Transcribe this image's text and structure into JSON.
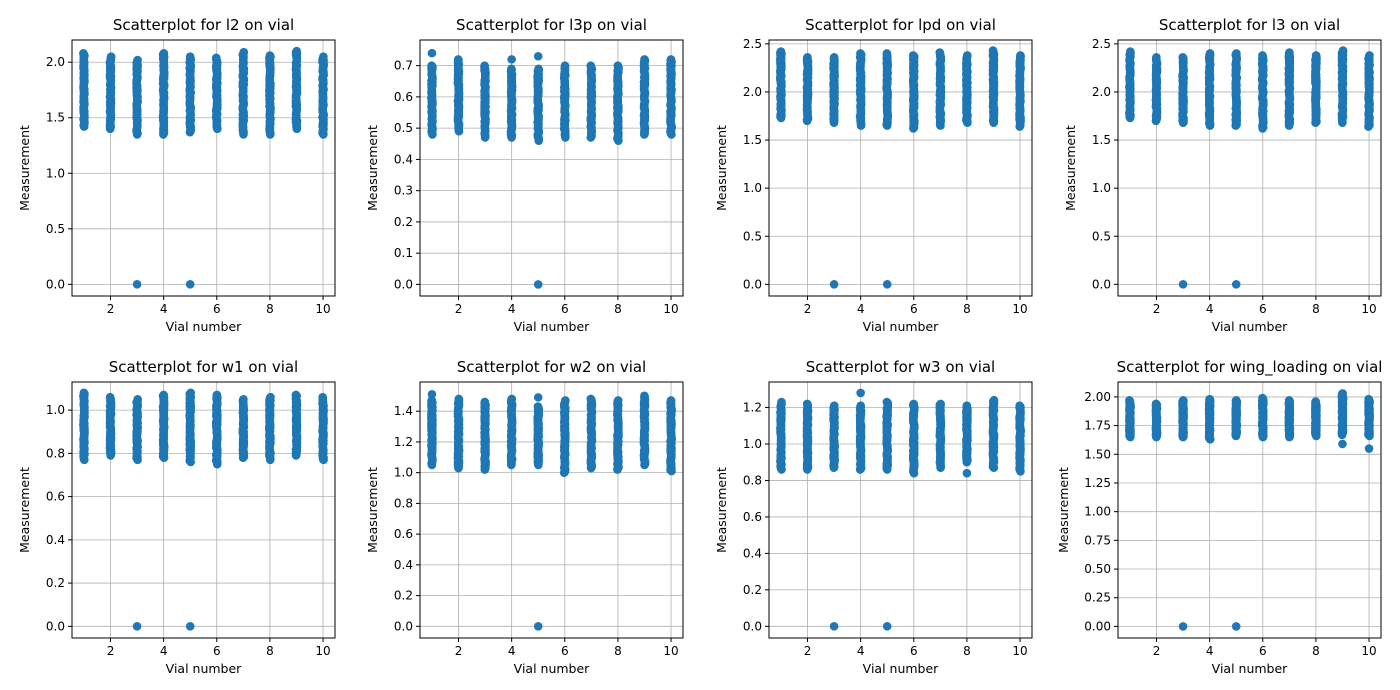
{
  "chart_data": [
    {
      "type": "scatter",
      "title": "Scatterplot for l2 on vial",
      "xlabel": "Vial number",
      "ylabel": "Measurement",
      "xticks": [
        "2",
        "4",
        "6",
        "8",
        "10"
      ],
      "yticks": [
        "0.0",
        "0.5",
        "1.0",
        "1.5",
        "2.0"
      ],
      "ytick_values": [
        0,
        0.5,
        1.0,
        1.5,
        2.0
      ],
      "xlim": [
        0.55,
        10.45
      ],
      "ylim": [
        -0.105,
        2.2
      ],
      "grid": true,
      "color": "#1f77b4",
      "clusters": [
        {
          "x": 1,
          "min": 1.42,
          "max": 2.08
        },
        {
          "x": 2,
          "min": 1.4,
          "max": 2.05
        },
        {
          "x": 3,
          "min": 1.35,
          "max": 2.02
        },
        {
          "x": 4,
          "min": 1.35,
          "max": 2.08
        },
        {
          "x": 5,
          "min": 1.37,
          "max": 2.05
        },
        {
          "x": 6,
          "min": 1.4,
          "max": 2.04
        },
        {
          "x": 7,
          "min": 1.35,
          "max": 2.09
        },
        {
          "x": 8,
          "min": 1.35,
          "max": 2.06
        },
        {
          "x": 9,
          "min": 1.4,
          "max": 2.1
        },
        {
          "x": 10,
          "min": 1.35,
          "max": 2.05
        }
      ],
      "outliers": [
        {
          "x": 3,
          "y": 0
        },
        {
          "x": 5,
          "y": 0
        }
      ]
    },
    {
      "type": "scatter",
      "title": "Scatterplot for l3p on vial",
      "xlabel": "Vial number",
      "ylabel": "Measurement",
      "xticks": [
        "2",
        "4",
        "6",
        "8",
        "10"
      ],
      "yticks": [
        "0.0",
        "0.1",
        "0.2",
        "0.3",
        "0.4",
        "0.5",
        "0.6",
        "0.7"
      ],
      "ytick_values": [
        0,
        0.1,
        0.2,
        0.3,
        0.4,
        0.5,
        0.6,
        0.7
      ],
      "xlim": [
        0.55,
        10.45
      ],
      "ylim": [
        -0.037,
        0.782
      ],
      "grid": true,
      "color": "#1f77b4",
      "clusters": [
        {
          "x": 1,
          "min": 0.48,
          "max": 0.7
        },
        {
          "x": 2,
          "min": 0.49,
          "max": 0.72
        },
        {
          "x": 3,
          "min": 0.47,
          "max": 0.7
        },
        {
          "x": 4,
          "min": 0.47,
          "max": 0.69
        },
        {
          "x": 5,
          "min": 0.46,
          "max": 0.69
        },
        {
          "x": 6,
          "min": 0.47,
          "max": 0.7
        },
        {
          "x": 7,
          "min": 0.47,
          "max": 0.7
        },
        {
          "x": 8,
          "min": 0.46,
          "max": 0.7
        },
        {
          "x": 9,
          "min": 0.48,
          "max": 0.72
        },
        {
          "x": 10,
          "min": 0.48,
          "max": 0.72
        }
      ],
      "outliers": [
        {
          "x": 1,
          "y": 0.74
        },
        {
          "x": 4,
          "y": 0.72
        },
        {
          "x": 5,
          "y": 0.73
        },
        {
          "x": 5,
          "y": 0
        }
      ]
    },
    {
      "type": "scatter",
      "title": "Scatterplot for lpd on vial",
      "xlabel": "Vial number",
      "ylabel": "Measurement",
      "xticks": [
        "2",
        "4",
        "6",
        "8",
        "10"
      ],
      "yticks": [
        "0.0",
        "0.5",
        "1.0",
        "1.5",
        "2.0",
        "2.5"
      ],
      "ytick_values": [
        0,
        0.5,
        1.0,
        1.5,
        2.0,
        2.5
      ],
      "xlim": [
        0.55,
        10.45
      ],
      "ylim": [
        -0.121,
        2.54
      ],
      "grid": true,
      "color": "#1f77b4",
      "clusters": [
        {
          "x": 1,
          "min": 1.73,
          "max": 2.42
        },
        {
          "x": 2,
          "min": 1.7,
          "max": 2.36
        },
        {
          "x": 3,
          "min": 1.68,
          "max": 2.36
        },
        {
          "x": 4,
          "min": 1.65,
          "max": 2.4
        },
        {
          "x": 5,
          "min": 1.65,
          "max": 2.4
        },
        {
          "x": 6,
          "min": 1.62,
          "max": 2.38
        },
        {
          "x": 7,
          "min": 1.65,
          "max": 2.41
        },
        {
          "x": 8,
          "min": 1.68,
          "max": 2.38
        },
        {
          "x": 9,
          "min": 1.68,
          "max": 2.43
        },
        {
          "x": 10,
          "min": 1.64,
          "max": 2.38
        }
      ],
      "outliers": [
        {
          "x": 3,
          "y": 0
        },
        {
          "x": 5,
          "y": 0
        }
      ]
    },
    {
      "type": "scatter",
      "title": "Scatterplot for l3 on vial",
      "xlabel": "Vial number",
      "ylabel": "Measurement",
      "xticks": [
        "2",
        "4",
        "6",
        "8",
        "10"
      ],
      "yticks": [
        "0.0",
        "0.5",
        "1.0",
        "1.5",
        "2.0",
        "2.5"
      ],
      "ytick_values": [
        0,
        0.5,
        1.0,
        1.5,
        2.0,
        2.5
      ],
      "xlim": [
        0.55,
        10.45
      ],
      "ylim": [
        -0.121,
        2.54
      ],
      "grid": true,
      "color": "#1f77b4",
      "clusters": [
        {
          "x": 1,
          "min": 1.73,
          "max": 2.42
        },
        {
          "x": 2,
          "min": 1.7,
          "max": 2.36
        },
        {
          "x": 3,
          "min": 1.68,
          "max": 2.36
        },
        {
          "x": 4,
          "min": 1.65,
          "max": 2.4
        },
        {
          "x": 5,
          "min": 1.65,
          "max": 2.4
        },
        {
          "x": 6,
          "min": 1.62,
          "max": 2.38
        },
        {
          "x": 7,
          "min": 1.65,
          "max": 2.41
        },
        {
          "x": 8,
          "min": 1.68,
          "max": 2.38
        },
        {
          "x": 9,
          "min": 1.68,
          "max": 2.43
        },
        {
          "x": 10,
          "min": 1.64,
          "max": 2.38
        }
      ],
      "outliers": [
        {
          "x": 3,
          "y": 0
        },
        {
          "x": 5,
          "y": 0
        }
      ]
    },
    {
      "type": "scatter",
      "title": "Scatterplot for w1 on vial",
      "xlabel": "Vial number",
      "ylabel": "Measurement",
      "xticks": [
        "2",
        "4",
        "6",
        "8",
        "10"
      ],
      "yticks": [
        "0.0",
        "0.2",
        "0.4",
        "0.6",
        "0.8",
        "1.0"
      ],
      "ytick_values": [
        0,
        0.2,
        0.4,
        0.6,
        0.8,
        1.0
      ],
      "xlim": [
        0.55,
        10.45
      ],
      "ylim": [
        -0.054,
        1.13
      ],
      "grid": true,
      "color": "#1f77b4",
      "clusters": [
        {
          "x": 1,
          "min": 0.77,
          "max": 1.08
        },
        {
          "x": 2,
          "min": 0.79,
          "max": 1.06
        },
        {
          "x": 3,
          "min": 0.77,
          "max": 1.05
        },
        {
          "x": 4,
          "min": 0.78,
          "max": 1.07
        },
        {
          "x": 5,
          "min": 0.76,
          "max": 1.08
        },
        {
          "x": 6,
          "min": 0.75,
          "max": 1.07
        },
        {
          "x": 7,
          "min": 0.78,
          "max": 1.05
        },
        {
          "x": 8,
          "min": 0.77,
          "max": 1.06
        },
        {
          "x": 9,
          "min": 0.79,
          "max": 1.07
        },
        {
          "x": 10,
          "min": 0.77,
          "max": 1.06
        }
      ],
      "outliers": [
        {
          "x": 3,
          "y": 0
        },
        {
          "x": 5,
          "y": 0
        }
      ]
    },
    {
      "type": "scatter",
      "title": "Scatterplot for w2 on vial",
      "xlabel": "Vial number",
      "ylabel": "Measurement",
      "xticks": [
        "2",
        "4",
        "6",
        "8",
        "10"
      ],
      "yticks": [
        "0.0",
        "0.2",
        "0.4",
        "0.6",
        "0.8",
        "1.0",
        "1.2",
        "1.4"
      ],
      "ytick_values": [
        0,
        0.2,
        0.4,
        0.6,
        0.8,
        1.0,
        1.2,
        1.4
      ],
      "xlim": [
        0.55,
        10.45
      ],
      "ylim": [
        -0.076,
        1.59
      ],
      "grid": true,
      "color": "#1f77b4",
      "clusters": [
        {
          "x": 1,
          "min": 1.05,
          "max": 1.47
        },
        {
          "x": 2,
          "min": 1.03,
          "max": 1.48
        },
        {
          "x": 3,
          "min": 1.02,
          "max": 1.46
        },
        {
          "x": 4,
          "min": 1.05,
          "max": 1.48
        },
        {
          "x": 5,
          "min": 1.05,
          "max": 1.43
        },
        {
          "x": 6,
          "min": 1.0,
          "max": 1.47
        },
        {
          "x": 7,
          "min": 1.03,
          "max": 1.48
        },
        {
          "x": 8,
          "min": 1.02,
          "max": 1.47
        },
        {
          "x": 9,
          "min": 1.05,
          "max": 1.5
        },
        {
          "x": 10,
          "min": 1.01,
          "max": 1.47
        }
      ],
      "outliers": [
        {
          "x": 1,
          "y": 1.51
        },
        {
          "x": 5,
          "y": 1.49
        },
        {
          "x": 5,
          "y": 0
        }
      ]
    },
    {
      "type": "scatter",
      "title": "Scatterplot for w3 on vial",
      "xlabel": "Vial number",
      "ylabel": "Measurement",
      "xticks": [
        "2",
        "4",
        "6",
        "8",
        "10"
      ],
      "yticks": [
        "0.0",
        "0.2",
        "0.4",
        "0.6",
        "0.8",
        "1.0",
        "1.2"
      ],
      "ytick_values": [
        0,
        0.2,
        0.4,
        0.6,
        0.8,
        1.0,
        1.2
      ],
      "xlim": [
        0.55,
        10.45
      ],
      "ylim": [
        -0.064,
        1.34
      ],
      "grid": true,
      "color": "#1f77b4",
      "clusters": [
        {
          "x": 1,
          "min": 0.86,
          "max": 1.23
        },
        {
          "x": 2,
          "min": 0.86,
          "max": 1.22
        },
        {
          "x": 3,
          "min": 0.87,
          "max": 1.21
        },
        {
          "x": 4,
          "min": 0.86,
          "max": 1.21
        },
        {
          "x": 5,
          "min": 0.86,
          "max": 1.23
        },
        {
          "x": 6,
          "min": 0.84,
          "max": 1.22
        },
        {
          "x": 7,
          "min": 0.87,
          "max": 1.22
        },
        {
          "x": 8,
          "min": 0.9,
          "max": 1.21
        },
        {
          "x": 9,
          "min": 0.87,
          "max": 1.24
        },
        {
          "x": 10,
          "min": 0.85,
          "max": 1.21
        }
      ],
      "outliers": [
        {
          "x": 4,
          "y": 1.28
        },
        {
          "x": 8,
          "y": 0.84
        },
        {
          "x": 3,
          "y": 0
        },
        {
          "x": 5,
          "y": 0
        }
      ]
    },
    {
      "type": "scatter",
      "title": "Scatterplot for wing_loading on vial",
      "xlabel": "Vial number",
      "ylabel": "Measurement",
      "xticks": [
        "2",
        "4",
        "6",
        "8",
        "10"
      ],
      "yticks": [
        "0.00",
        "0.25",
        "0.50",
        "0.75",
        "1.00",
        "1.25",
        "1.50",
        "1.75",
        "2.00"
      ],
      "ytick_values": [
        0,
        0.25,
        0.5,
        0.75,
        1.0,
        1.25,
        1.5,
        1.75,
        2.0
      ],
      "xlim": [
        0.55,
        10.45
      ],
      "ylim": [
        -0.101,
        2.13
      ],
      "grid": true,
      "color": "#1f77b4",
      "clusters": [
        {
          "x": 1,
          "min": 1.65,
          "max": 1.97
        },
        {
          "x": 2,
          "min": 1.65,
          "max": 1.94
        },
        {
          "x": 3,
          "min": 1.65,
          "max": 1.97
        },
        {
          "x": 4,
          "min": 1.63,
          "max": 1.98
        },
        {
          "x": 5,
          "min": 1.66,
          "max": 1.97
        },
        {
          "x": 6,
          "min": 1.65,
          "max": 1.99
        },
        {
          "x": 7,
          "min": 1.65,
          "max": 1.97
        },
        {
          "x": 8,
          "min": 1.66,
          "max": 1.96
        },
        {
          "x": 9,
          "min": 1.67,
          "max": 2.03
        },
        {
          "x": 10,
          "min": 1.66,
          "max": 1.98
        }
      ],
      "outliers": [
        {
          "x": 9,
          "y": 1.59
        },
        {
          "x": 10,
          "y": 1.55
        },
        {
          "x": 3,
          "y": 0
        },
        {
          "x": 5,
          "y": 0
        }
      ]
    }
  ]
}
